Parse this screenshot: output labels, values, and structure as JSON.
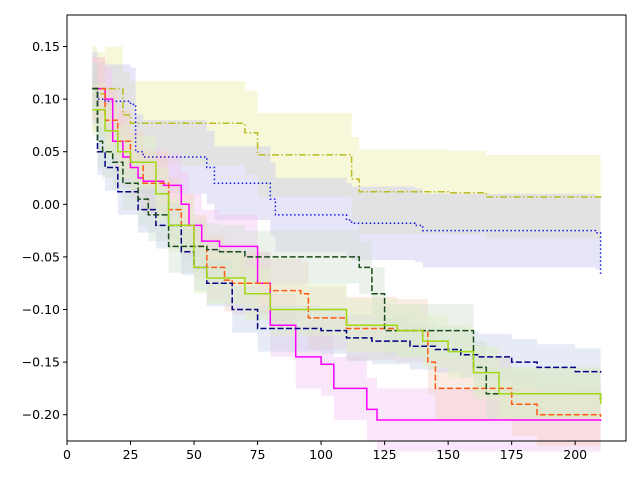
{
  "chart_data": {
    "type": "line",
    "title": "",
    "xlabel": "",
    "ylabel": "",
    "xlim": [
      0,
      220
    ],
    "ylim": [
      -0.225,
      0.18
    ],
    "xticks": [
      0,
      25,
      50,
      75,
      100,
      125,
      150,
      175,
      200
    ],
    "xtick_labels": [
      "0",
      "25",
      "50",
      "75",
      "100",
      "125",
      "150",
      "175",
      "200"
    ],
    "yticks": [
      0.15,
      0.1,
      0.05,
      0.0,
      -0.05,
      -0.1,
      -0.15,
      -0.2
    ],
    "ytick_labels": [
      "0.15",
      "0.10",
      "0.05",
      "0.00",
      "−0.05",
      "−0.10",
      "−0.15",
      "−0.20"
    ],
    "grid": false,
    "legend": "none",
    "series": [
      {
        "name": "olive-dashdot",
        "color": "#bcbd22",
        "dash": "dashdot",
        "band_color": "#eeeeaa",
        "band_halfwidth": 0.04,
        "x": [
          10,
          12,
          15,
          20,
          22,
          25,
          70,
          75,
          112,
          115,
          150,
          165,
          210
        ],
        "y": [
          0.11,
          0.105,
          0.11,
          0.11,
          0.085,
          0.077,
          0.068,
          0.047,
          0.024,
          0.012,
          0.011,
          0.007,
          0.006
        ]
      },
      {
        "name": "blue-dotted",
        "color": "#1a1ae8",
        "dash": "dotted",
        "band_color": "#c8c8f0",
        "band_halfwidth": 0.035,
        "x": [
          10,
          12,
          15,
          25,
          27,
          30,
          35,
          55,
          58,
          80,
          82,
          110,
          112,
          137,
          140,
          208,
          210
        ],
        "y": [
          0.11,
          0.1,
          0.098,
          0.095,
          0.05,
          0.045,
          0.045,
          0.035,
          0.02,
          0.005,
          -0.01,
          -0.015,
          -0.018,
          -0.02,
          -0.025,
          -0.027,
          -0.067
        ]
      },
      {
        "name": "magenta-solid",
        "color": "#ff00ff",
        "dash": "solid",
        "band_color": "#f5c8f5",
        "band_halfwidth": 0.03,
        "x": [
          10,
          15,
          18,
          22,
          25,
          28,
          30,
          38,
          45,
          48,
          53,
          60,
          75,
          80,
          90,
          100,
          105,
          118,
          122,
          210
        ],
        "y": [
          0.11,
          0.1,
          0.06,
          0.045,
          0.035,
          0.025,
          0.022,
          0.018,
          0.0,
          -0.02,
          -0.035,
          -0.04,
          -0.075,
          -0.115,
          -0.145,
          -0.152,
          -0.175,
          -0.195,
          -0.205,
          -0.206
        ]
      },
      {
        "name": "orange-dashed",
        "color": "#ff5a14",
        "dash": "dashed",
        "band_color": "#f5d2c3",
        "band_halfwidth": 0.03,
        "x": [
          10,
          15,
          20,
          25,
          30,
          40,
          45,
          50,
          55,
          62,
          65,
          80,
          92,
          95,
          110,
          130,
          142,
          145,
          175,
          185,
          210
        ],
        "y": [
          0.11,
          0.08,
          0.06,
          0.04,
          0.02,
          -0.005,
          -0.02,
          -0.04,
          -0.06,
          -0.072,
          -0.075,
          -0.082,
          -0.085,
          -0.108,
          -0.118,
          -0.12,
          -0.15,
          -0.175,
          -0.19,
          -0.2,
          -0.202
        ]
      },
      {
        "name": "navy-dashed",
        "color": "#000080",
        "dash": "dashed",
        "band_color": "#c8d2ec",
        "band_halfwidth": 0.022,
        "x": [
          10,
          12,
          15,
          20,
          28,
          35,
          45,
          50,
          55,
          65,
          75,
          100,
          110,
          120,
          135,
          145,
          155,
          162,
          175,
          185,
          200,
          210
        ],
        "y": [
          0.11,
          0.05,
          0.035,
          0.012,
          -0.005,
          -0.02,
          -0.045,
          -0.06,
          -0.075,
          -0.1,
          -0.118,
          -0.12,
          -0.127,
          -0.13,
          -0.135,
          -0.138,
          -0.143,
          -0.145,
          -0.15,
          -0.155,
          -0.159,
          -0.16
        ]
      },
      {
        "name": "darkgreen-dashed",
        "color": "#1a4a1a",
        "dash": "dashed",
        "band_color": "#d2e1d2",
        "band_halfwidth": 0.025,
        "x": [
          10,
          12,
          14,
          18,
          22,
          28,
          32,
          40,
          55,
          60,
          70,
          100,
          110,
          115,
          120,
          125,
          130,
          155,
          160,
          165,
          210
        ],
        "y": [
          0.11,
          0.06,
          0.05,
          0.04,
          0.02,
          0.005,
          -0.01,
          -0.04,
          -0.043,
          -0.045,
          -0.05,
          -0.05,
          -0.05,
          -0.06,
          -0.085,
          -0.12,
          -0.12,
          -0.12,
          -0.155,
          -0.18,
          -0.186
        ]
      },
      {
        "name": "lime-solid",
        "color": "#a0d814",
        "dash": "solid",
        "band_color": "#e1f0c3",
        "band_halfwidth": 0.025,
        "x": [
          10,
          15,
          20,
          25,
          35,
          40,
          50,
          55,
          70,
          80,
          110,
          130,
          140,
          150,
          160,
          170,
          210
        ],
        "y": [
          0.09,
          0.07,
          0.05,
          0.04,
          0.01,
          -0.02,
          -0.06,
          -0.07,
          -0.085,
          -0.1,
          -0.115,
          -0.12,
          -0.13,
          -0.14,
          -0.16,
          -0.18,
          -0.19
        ]
      }
    ]
  }
}
